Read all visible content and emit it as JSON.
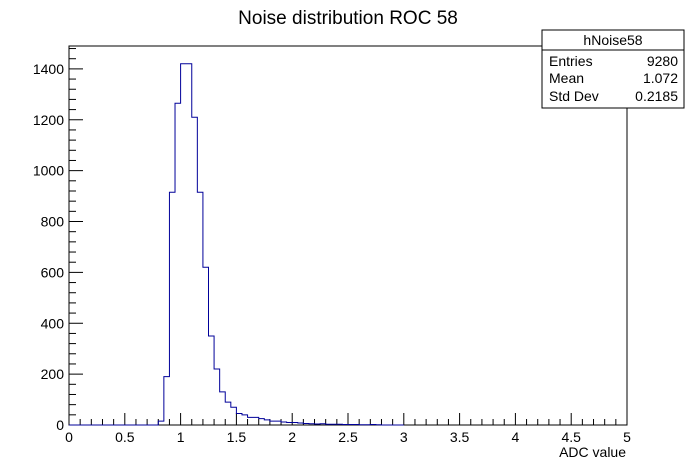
{
  "chart_data": {
    "type": "bar",
    "style": "step-histogram",
    "title": "Noise distribution ROC 58",
    "xlabel": "ADC value",
    "ylabel": "",
    "xlim": [
      0,
      5
    ],
    "ylim": [
      0,
      1490
    ],
    "bin_width": 0.05,
    "x_ticks": [
      "0",
      "0.5",
      "1",
      "1.5",
      "2",
      "2.5",
      "3",
      "3.5",
      "4",
      "4.5",
      "5"
    ],
    "y_ticks": [
      "0",
      "200",
      "400",
      "600",
      "800",
      "1000",
      "1200",
      "1400"
    ],
    "bin_edges": [
      0.0,
      0.05,
      0.1,
      0.15,
      0.2,
      0.25,
      0.3,
      0.35,
      0.4,
      0.45,
      0.5,
      0.55,
      0.6,
      0.65,
      0.7,
      0.75,
      0.8,
      0.85,
      0.9,
      0.95,
      1.0,
      1.05,
      1.1,
      1.15,
      1.2,
      1.25,
      1.3,
      1.35,
      1.4,
      1.45,
      1.5,
      1.55,
      1.6,
      1.65,
      1.7,
      1.75,
      1.8,
      1.85,
      1.9,
      1.95,
      2.0,
      2.05,
      2.1,
      2.15,
      2.2,
      2.25,
      2.3,
      2.35,
      2.4,
      2.45,
      2.5,
      2.55,
      2.6,
      2.65,
      2.7,
      2.75,
      2.8,
      2.85,
      2.9,
      2.95,
      3.0
    ],
    "values": [
      0,
      0,
      0,
      0,
      0,
      0,
      0,
      0,
      0,
      0,
      0,
      0,
      0,
      0,
      0,
      0,
      15,
      190,
      915,
      1265,
      1420,
      1420,
      1210,
      915,
      620,
      350,
      220,
      130,
      90,
      70,
      45,
      40,
      30,
      30,
      25,
      20,
      15,
      15,
      12,
      10,
      10,
      8,
      6,
      5,
      4,
      5,
      3,
      3,
      3,
      2,
      2,
      2,
      1,
      1,
      2,
      1,
      0,
      0,
      0,
      0
    ],
    "series": [
      {
        "name": "hNoise58",
        "color": "#000099"
      }
    ],
    "stats": {
      "name": "hNoise58",
      "rows": [
        {
          "label": "Entries",
          "value": "9280"
        },
        {
          "label": "Mean",
          "value": "1.072"
        },
        {
          "label": "Std Dev",
          "value": "0.2185"
        }
      ]
    },
    "grid": false,
    "legend_position": "top-right"
  }
}
